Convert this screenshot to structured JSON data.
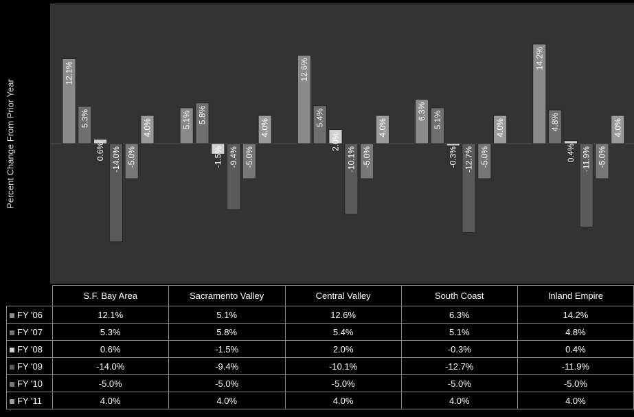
{
  "chart_data": {
    "type": "bar",
    "ylabel": "Percent Change From Prior Year",
    "categories": [
      "S.F. Bay Area",
      "Sacramento Valley",
      "Central Valley",
      "South Coast",
      "Inland Empire"
    ],
    "series": [
      {
        "name": "FY '06",
        "values": [
          12.1,
          5.1,
          12.6,
          6.3,
          14.2
        ],
        "labels": [
          "12.1%",
          "5.1%",
          "12.6%",
          "6.3%",
          "14.2%"
        ]
      },
      {
        "name": "FY '07",
        "values": [
          5.3,
          5.8,
          5.4,
          5.1,
          4.8
        ],
        "labels": [
          "5.3%",
          "5.8%",
          "5.4%",
          "5.1%",
          "4.8%"
        ]
      },
      {
        "name": "FY '08",
        "values": [
          0.6,
          -1.5,
          2.0,
          -0.3,
          0.4
        ],
        "labels": [
          "0.6%",
          "-1.5%",
          "2.0%",
          "-0.3%",
          "0.4%"
        ]
      },
      {
        "name": "FY '09",
        "values": [
          -14.0,
          -9.4,
          -10.1,
          -12.7,
          -11.9
        ],
        "labels": [
          "-14.0%",
          "-9.4%",
          "-10.1%",
          "-12.7%",
          "-11.9%"
        ]
      },
      {
        "name": "FY '10",
        "values": [
          -5.0,
          -5.0,
          -5.0,
          -5.0,
          -5.0
        ],
        "labels": [
          "-5.0%",
          "-5.0%",
          "-5.0%",
          "-5.0%",
          "-5.0%"
        ]
      },
      {
        "name": "FY '11",
        "values": [
          4.0,
          4.0,
          4.0,
          4.0,
          4.0
        ],
        "labels": [
          "4.0%",
          "4.0%",
          "4.0%",
          "4.0%",
          "4.0%"
        ]
      }
    ],
    "ylim": [
      -20,
      20
    ],
    "grid": false,
    "legend": "data-table",
    "colors": [
      "#8a8a8a",
      "#6f6f6f",
      "#d0d0d0",
      "#5a5a5a",
      "#777777",
      "#9a9a9a"
    ]
  }
}
